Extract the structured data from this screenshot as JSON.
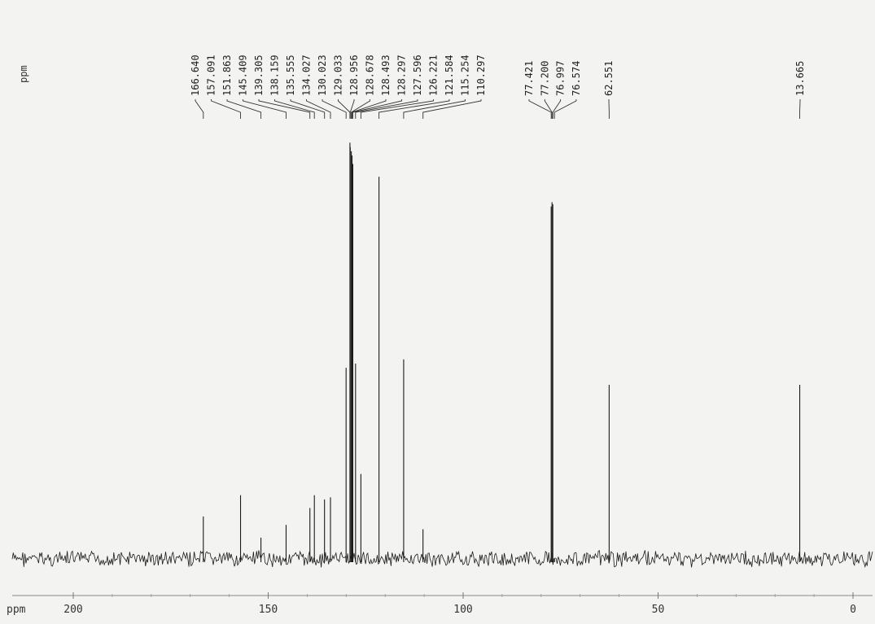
{
  "chart_data": {
    "type": "line",
    "title": "",
    "xlabel": "ppm",
    "ylabel": "",
    "corner_unit_label": "ppm",
    "x_reversed": true,
    "xlim": [
      210,
      -5
    ],
    "x_ticks": [
      200,
      150,
      100,
      50,
      0
    ],
    "x_tick_labels": [
      "200",
      "150",
      "100",
      "50",
      "0"
    ],
    "grid": false,
    "legend": "none",
    "line_color": "#1a1a1a",
    "peak_label_color": "#222222",
    "peaks": [
      {
        "ppm": 166.64,
        "label": "166.640",
        "height": 0.1
      },
      {
        "ppm": 157.091,
        "label": "157.091",
        "height": 0.15
      },
      {
        "ppm": 151.863,
        "label": "151.863",
        "height": 0.05
      },
      {
        "ppm": 145.409,
        "label": "145.409",
        "height": 0.08
      },
      {
        "ppm": 139.305,
        "label": "139.305",
        "height": 0.12
      },
      {
        "ppm": 138.159,
        "label": "138.159",
        "height": 0.15
      },
      {
        "ppm": 135.555,
        "label": "135.555",
        "height": 0.14
      },
      {
        "ppm": 134.027,
        "label": "134.027",
        "height": 0.145
      },
      {
        "ppm": 130.023,
        "label": "130.023",
        "height": 0.45
      },
      {
        "ppm": 129.033,
        "label": "129.033",
        "height": 0.98
      },
      {
        "ppm": 128.956,
        "label": "128.956",
        "height": 0.97
      },
      {
        "ppm": 128.678,
        "label": "128.678",
        "height": 0.96
      },
      {
        "ppm": 128.493,
        "label": "128.493",
        "height": 0.95
      },
      {
        "ppm": 128.297,
        "label": "128.297",
        "height": 0.93
      },
      {
        "ppm": 127.596,
        "label": "127.596",
        "height": 0.46
      },
      {
        "ppm": 126.221,
        "label": "126.221",
        "height": 0.2
      },
      {
        "ppm": 121.584,
        "label": "121.584",
        "height": 0.9
      },
      {
        "ppm": 115.254,
        "label": "115.254",
        "height": 0.47
      },
      {
        "ppm": 110.297,
        "label": "110.297",
        "height": 0.07
      },
      {
        "ppm": 77.421,
        "label": "77.421",
        "height": 0.83
      },
      {
        "ppm": 77.2,
        "label": "77.200",
        "height": 0.84
      },
      {
        "ppm": 76.997,
        "label": "76.997",
        "height": 0.835
      },
      {
        "ppm": 76.574,
        "label": "76.574",
        "height": 0.0
      },
      {
        "ppm": 62.551,
        "label": "62.551",
        "height": 0.41
      },
      {
        "ppm": 13.665,
        "label": "13.665",
        "height": 0.41
      }
    ]
  }
}
